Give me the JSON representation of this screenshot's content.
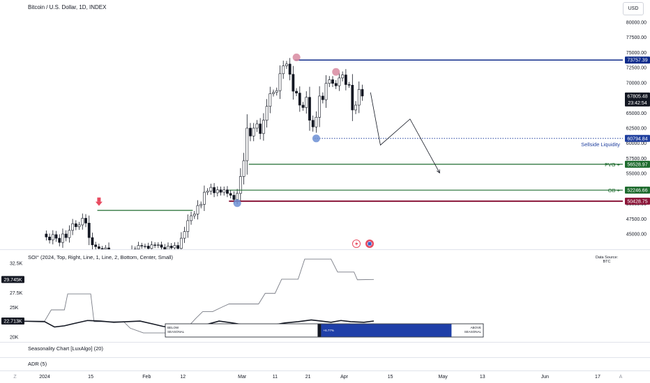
{
  "header": {
    "title": "Bitcoin / U.S. Dollar, 1D, INDEX",
    "currency_button": "USD"
  },
  "colors": {
    "up_candle": "#ffffff",
    "down_candle": "#131722",
    "resistance_line": "#0d2a8a",
    "sellside_line": "#1f3f9e",
    "fvg_line": "#1e6b2e",
    "ob_line": "#1e6b2e",
    "bottom_line": "#8a1538",
    "marker_red": "#e84a5f",
    "marker_pink": "#d88aa0",
    "marker_blue": "#6c8fd4",
    "seasonal_bar": "#1f3fa8"
  },
  "chart_data": [
    {
      "type": "candlestick",
      "title": "Bitcoin / U.S. Dollar, 1D, INDEX",
      "ylim": [
        44000,
        80500
      ],
      "y_ticks": [
        "80000.00",
        "77500.00",
        "75000.00",
        "72500.00",
        "70000.00",
        "67500.00",
        "65000.00",
        "62500.00",
        "60000.00",
        "57500.00",
        "55000.00",
        "52500.00",
        "50000.00",
        "47500.00",
        "45000.00"
      ],
      "y_tick_values": [
        80000,
        77500,
        75000,
        72500,
        70000,
        67500,
        65000,
        62500,
        60000,
        57500,
        55000,
        52500,
        50000,
        47500,
        45000
      ],
      "x_ticks": [
        {
          "label": "Z",
          "day": -9
        },
        {
          "label": "2024",
          "day": 0
        },
        {
          "label": "15",
          "day": 14
        },
        {
          "label": "Feb",
          "day": 31
        },
        {
          "label": "12",
          "day": 42
        },
        {
          "label": "Mar",
          "day": 60
        },
        {
          "label": "11",
          "day": 70
        },
        {
          "label": "21",
          "day": 80
        },
        {
          "label": "Apr",
          "day": 91
        },
        {
          "label": "15",
          "day": 105
        },
        {
          "label": "May",
          "day": 121
        },
        {
          "label": "13",
          "day": 133
        },
        {
          "label": "Jun",
          "day": 152
        },
        {
          "label": "17",
          "day": 168
        },
        {
          "label": "A",
          "day": 175
        }
      ],
      "candles_close": [
        44500,
        44000,
        44900,
        44300,
        43600,
        45000,
        44400,
        45600,
        46700,
        46200,
        46500,
        47600,
        46800,
        44400,
        43200,
        42900,
        42600,
        42500,
        42700,
        41300,
        41000,
        40100,
        40000,
        40100,
        40300,
        41500,
        42400,
        42500,
        43100,
        43000,
        43000,
        42600,
        43200,
        43100,
        43200,
        42800,
        42400,
        43000,
        42700,
        43100,
        42600,
        44300,
        45400,
        47200,
        48000,
        48300,
        49700,
        49900,
        51900,
        52100,
        52700,
        51800,
        52300,
        51900,
        52300,
        51700,
        51400,
        50700,
        51700,
        54500,
        57100,
        62500,
        61200,
        62500,
        63200,
        61600,
        63800,
        66100,
        68200,
        68400,
        68700,
        71500,
        72800,
        73100,
        71400,
        68600,
        68300,
        66300,
        65900,
        67600,
        63800,
        62700,
        64300,
        67800,
        67200,
        69900,
        70500,
        69900,
        69500,
        70800,
        71300,
        69700,
        69600,
        65500,
        66300,
        68900,
        67800
      ],
      "price_labels": [
        {
          "value": "73757.39",
          "price": 73757.39
        },
        {
          "value": "67805.48",
          "price": 67805.48,
          "countdown": "23:42:54"
        },
        {
          "value": "60794.84",
          "price": 60794.84
        },
        {
          "value": "56528.97",
          "price": 56528.97
        },
        {
          "value": "52246.66",
          "price": 52246.66
        },
        {
          "value": "50428.75",
          "price": 50428.75
        }
      ],
      "levels": [
        {
          "name": "resistance",
          "price": 73757.39,
          "from_day": 76
        },
        {
          "name": "sellside-liquidity",
          "price": 60794.84,
          "from_day": 82,
          "text": "Sellside Liquidity",
          "dotted": true
        },
        {
          "name": "fvg",
          "price": 56528.97,
          "from_day": 62,
          "text": "FVG +"
        },
        {
          "name": "ob",
          "price": 52246.66,
          "from_day": 56,
          "text": "OB +"
        },
        {
          "name": "support",
          "price": 50428.75,
          "from_day": 56
        },
        {
          "name": "january-high",
          "price": 48900,
          "from_day": 16,
          "to_day": 45
        }
      ],
      "markers": [
        {
          "name": "red-arrow",
          "day": 16,
          "price": 49300
        },
        {
          "name": "high-circle",
          "day": 76,
          "price": 74200
        },
        {
          "name": "second-high-circle",
          "day": 88,
          "price": 71800
        },
        {
          "name": "low-circle",
          "day": 82,
          "price": 60794.84
        },
        {
          "name": "ob-low-circle",
          "day": 58,
          "price": 50100
        }
      ],
      "projection_path": [
        {
          "day": 99,
          "price": 68400
        },
        {
          "day": 102,
          "price": 59700
        },
        {
          "day": 111,
          "price": 64000
        },
        {
          "day": 120,
          "price": 55100
        }
      ]
    },
    {
      "type": "line",
      "title": "SOI° (2024, Top, Right, Line, 1, Line, 2, Bottom, Center, Small)",
      "data_source_label": "Data Source:",
      "data_source_value": "BTC",
      "ylim": [
        19500,
        34000
      ],
      "y_ticks": [
        "32.5K",
        "27.5K",
        "25K",
        "20K"
      ],
      "y_tick_values": [
        32500,
        27500,
        25000,
        20000
      ],
      "value_labels": [
        {
          "value": "29.745K",
          "y": 29745
        },
        {
          "value": "22.713K",
          "y": 22713
        }
      ],
      "series": [
        {
          "name_hidden": true,
          "points": [
            [
              -9,
              22700
            ],
            [
              0,
              22700
            ],
            [
              2,
              24600
            ],
            [
              6,
              24600
            ],
            [
              7,
              27300
            ],
            [
              14,
              27300
            ],
            [
              15,
              22600
            ],
            [
              24,
              22600
            ],
            [
              26,
              21500
            ],
            [
              30,
              20700
            ],
            [
              38,
              20700
            ],
            [
              40,
              22000
            ],
            [
              44,
              22000
            ],
            [
              46,
              23200
            ],
            [
              48,
              24300
            ],
            [
              51,
              24300
            ],
            [
              54,
              25100
            ],
            [
              56,
              25600
            ],
            [
              65,
              25600
            ],
            [
              67,
              27400
            ],
            [
              70,
              27400
            ],
            [
              72,
              29800
            ],
            [
              77,
              29800
            ],
            [
              79,
              33200
            ],
            [
              87,
              33200
            ],
            [
              89,
              31000
            ],
            [
              94,
              31000
            ],
            [
              95,
              29700
            ],
            [
              100,
              29745
            ]
          ]
        },
        {
          "name_hidden": true,
          "points": [
            [
              -9,
              22713
            ],
            [
              0,
              22600
            ],
            [
              3,
              21700
            ],
            [
              6,
              21900
            ],
            [
              9,
              22300
            ],
            [
              13,
              22800
            ],
            [
              17,
              22700
            ],
            [
              21,
              22500
            ],
            [
              25,
              22600
            ],
            [
              29,
              22700
            ],
            [
              33,
              22200
            ],
            [
              36,
              21800
            ],
            [
              41,
              21400
            ],
            [
              45,
              21700
            ],
            [
              49,
              22100
            ],
            [
              53,
              22700
            ],
            [
              57,
              22400
            ],
            [
              61,
              22000
            ],
            [
              65,
              21800
            ],
            [
              69,
              22000
            ],
            [
              73,
              22400
            ],
            [
              77,
              22600
            ],
            [
              81,
              22900
            ],
            [
              84,
              22700
            ],
            [
              87,
              22500
            ],
            [
              90,
              22800
            ],
            [
              93,
              22600
            ],
            [
              97,
              22500
            ],
            [
              100,
              22713
            ]
          ]
        }
      ],
      "seasonal_bar": {
        "below_label": "BELOW\nSEASONAL",
        "above_label": "ABOVE\nSEASONAL",
        "value_label": "+6.77%",
        "fill_fraction": 0.66
      }
    }
  ],
  "indicators": {
    "seasonality": "Seasonality Chart [LuxAlgo] (20)",
    "adr": "ADR (5)"
  }
}
